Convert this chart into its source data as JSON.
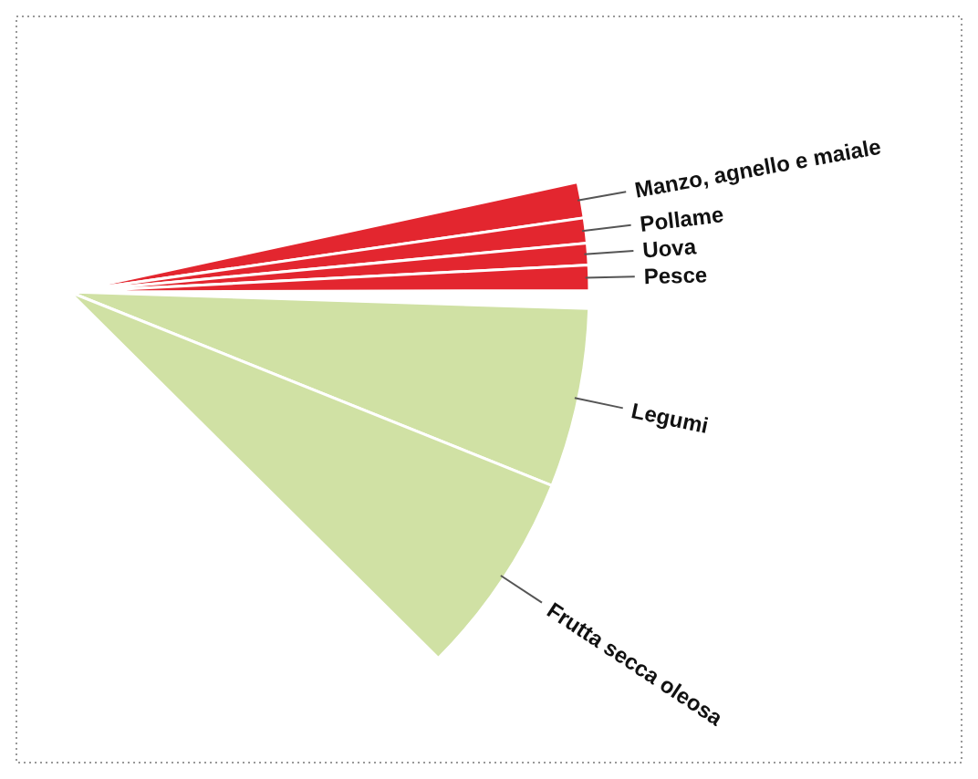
{
  "chart_data": {
    "type": "pie",
    "categories": [
      "Manzo, agnello e maiale",
      "Pollame",
      "Uova",
      "Pesce",
      "Legumi",
      "Frutta secca oleosa"
    ],
    "values": [
      7.3,
      5.1,
      4.4,
      5.1,
      36.4,
      41.7
    ],
    "colors": [
      "#e3262f",
      "#e3262f",
      "#e3262f",
      "#e3262f",
      "#d0e1a4",
      "#d0e1a4"
    ]
  }
}
